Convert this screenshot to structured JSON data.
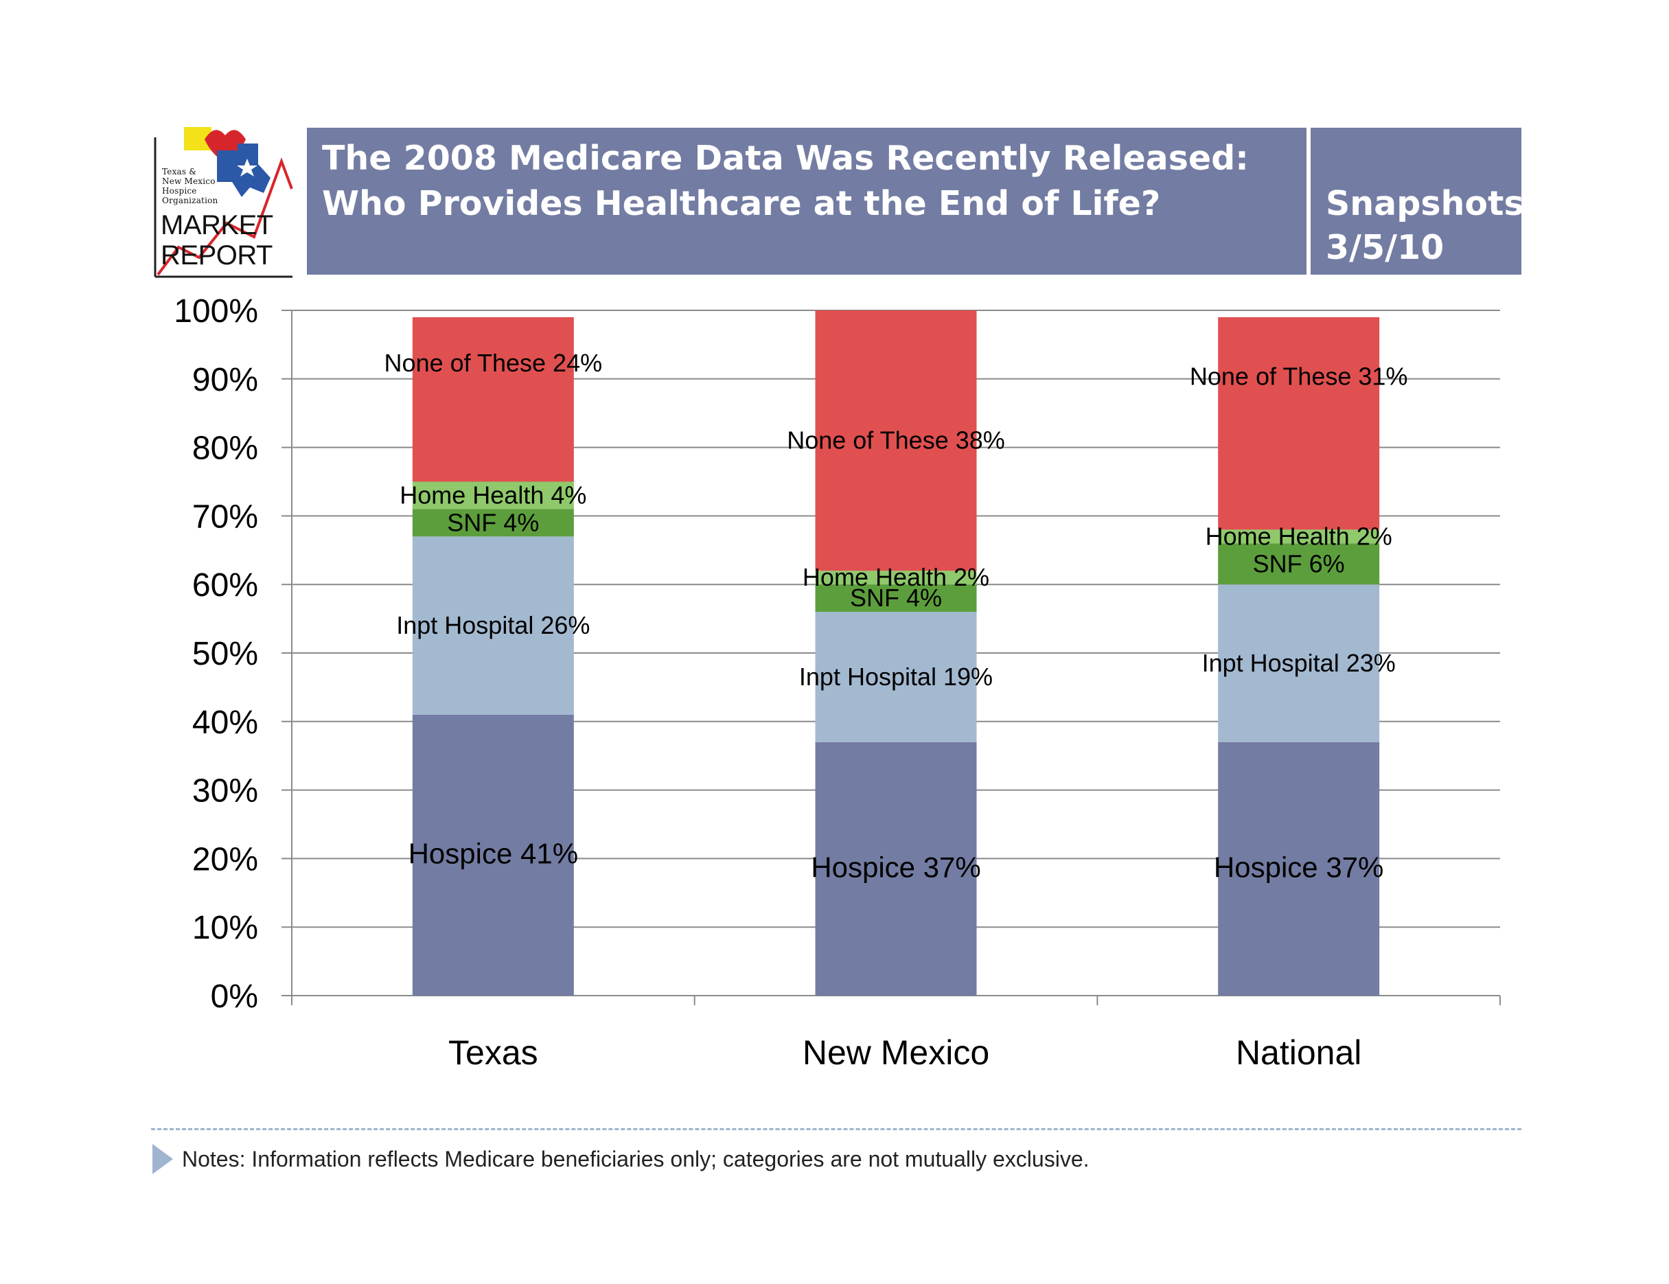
{
  "logo": {
    "small_lines": [
      "Texas &",
      "New Mexico",
      "Hospice",
      "Organization"
    ],
    "big_lines": [
      "MARKET",
      "REPORT"
    ]
  },
  "header": {
    "title_line1": "The 2008 Medicare Data Was Recently Released:",
    "title_line2": "Who Provides Healthcare at the End of Life?",
    "snapshot_line1": "Snapshots",
    "snapshot_line2": "3/5/10",
    "bar_color": "#737ca2"
  },
  "notes": {
    "text": "Notes:  Information reflects Medicare beneficiaries only; categories are not mutually exclusive."
  },
  "chart_data": {
    "type": "bar",
    "stacked": true,
    "categories": [
      "Texas",
      "New Mexico",
      "National"
    ],
    "ylim": [
      0,
      100
    ],
    "yticks": [
      "0%",
      "10%",
      "20%",
      "30%",
      "40%",
      "50%",
      "60%",
      "70%",
      "80%",
      "90%",
      "100%"
    ],
    "grid": true,
    "series": [
      {
        "name": "Hospice",
        "color": "#737ca2",
        "values": [
          41,
          37,
          37
        ],
        "labels": [
          "Hospice 41%",
          "Hospice 37%",
          "Hospice 37%"
        ]
      },
      {
        "name": "Inpt Hospital",
        "color": "#a3b9d0",
        "values": [
          26,
          19,
          23
        ],
        "labels": [
          "Inpt Hospital 26%",
          "Inpt Hospital 19%",
          "Inpt Hospital 23%"
        ]
      },
      {
        "name": "SNF",
        "color": "#5c9e3c",
        "values": [
          4,
          4,
          6
        ],
        "labels": [
          "SNF 4%",
          "SNF 4%",
          "SNF 6%"
        ]
      },
      {
        "name": "Home Health",
        "color": "#8fc96b",
        "values": [
          4,
          2,
          2
        ],
        "labels": [
          "Home Health 4%",
          "Home Health 2%",
          "Home Health 2%"
        ]
      },
      {
        "name": "None of These",
        "color": "#e05050",
        "values": [
          24,
          38,
          31
        ],
        "labels": [
          "None of These 24%",
          "None of These 38%",
          "None of These 31%"
        ]
      }
    ]
  }
}
